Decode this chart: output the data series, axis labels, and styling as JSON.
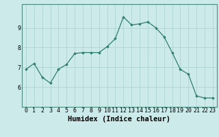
{
  "x": [
    0,
    1,
    2,
    3,
    4,
    5,
    6,
    7,
    8,
    9,
    10,
    11,
    12,
    13,
    14,
    15,
    16,
    17,
    18,
    19,
    20,
    21,
    22,
    23
  ],
  "y": [
    6.9,
    7.2,
    6.5,
    6.2,
    6.9,
    7.15,
    7.7,
    7.75,
    7.75,
    7.75,
    8.05,
    8.45,
    9.55,
    9.15,
    9.2,
    9.3,
    9.0,
    8.55,
    7.75,
    6.9,
    6.65,
    5.55,
    5.45,
    5.45
  ],
  "xlabel": "Humidex (Indice chaleur)",
  "xlim": [
    -0.5,
    23.5
  ],
  "ylim": [
    5.0,
    10.2
  ],
  "yticks": [
    6,
    7,
    8,
    9
  ],
  "xticks": [
    0,
    1,
    2,
    3,
    4,
    5,
    6,
    7,
    8,
    9,
    10,
    11,
    12,
    13,
    14,
    15,
    16,
    17,
    18,
    19,
    20,
    21,
    22,
    23
  ],
  "line_color": "#2e7d6e",
  "marker": "D",
  "marker_size": 1.8,
  "bg_color": "#cceaea",
  "grid_color": "#aed4d4",
  "label_fontsize": 7.5,
  "tick_fontsize": 6.0,
  "spine_color": "#4a8a80"
}
